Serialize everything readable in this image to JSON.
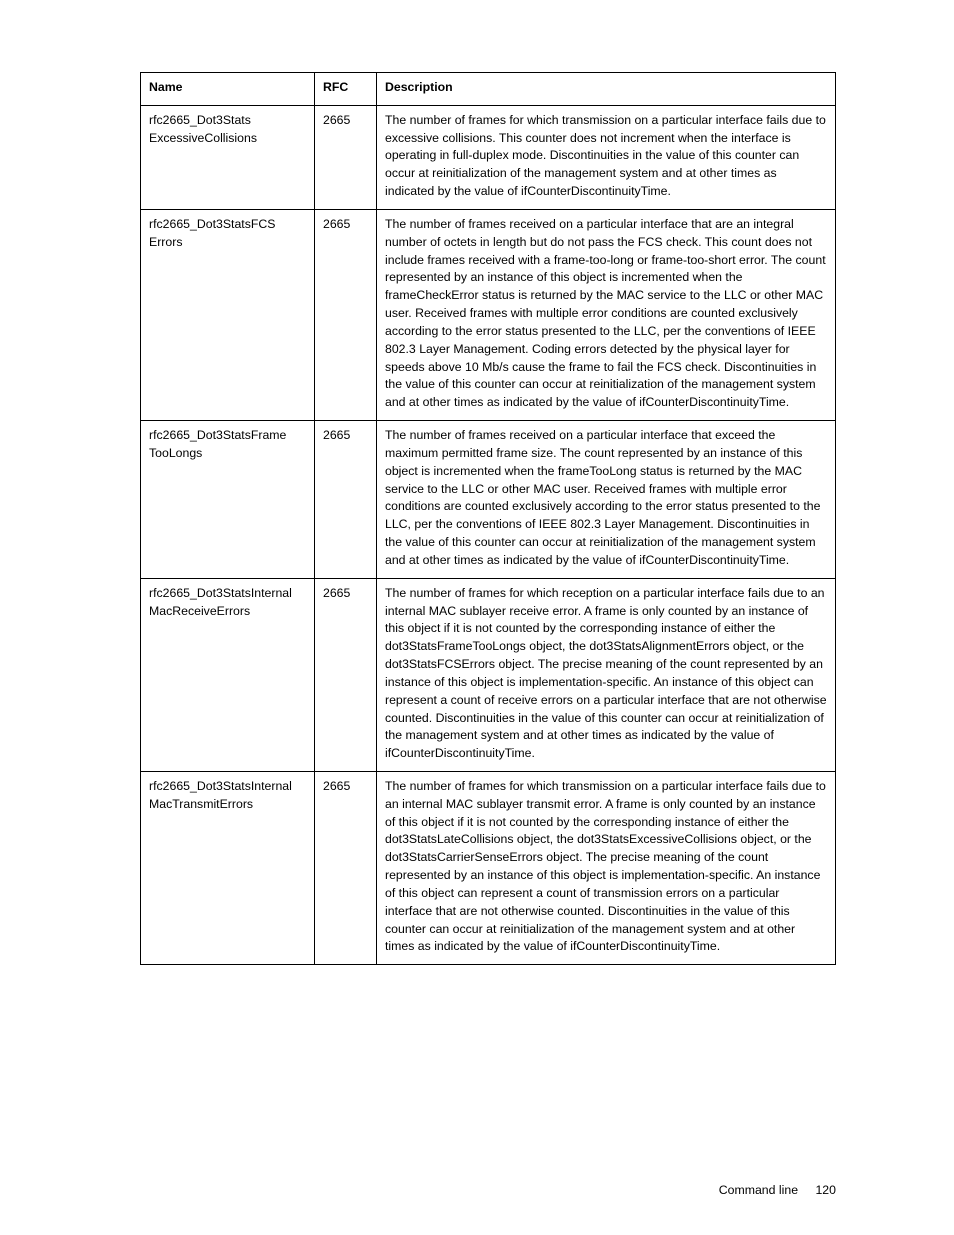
{
  "table": {
    "columns": {
      "name": "Name",
      "rfc": "RFC",
      "description": "Description"
    },
    "rows": [
      {
        "name_l1": "rfc2665_Dot3Stats",
        "name_l2": "ExcessiveCollisions",
        "rfc": "2665",
        "desc": "The number of frames for which transmission on a particular interface fails due to excessive collisions. This counter does not increment when the interface is operating in full-duplex mode. Discontinuities in the value of this counter can occur at reinitialization of the management system and at other times as indicated by the value of ifCounterDiscontinuityTime."
      },
      {
        "name_l1": "rfc2665_Dot3StatsFCS",
        "name_l2": "Errors",
        "rfc": "2665",
        "desc": "The number of frames received on a particular interface that are an integral number of octets in length but do not pass the FCS check. This count does not include frames received with a frame-too-long or frame-too-short error. The count represented by an instance of this object is incremented when the frameCheckError status is returned by the MAC service to the LLC or other MAC user. Received frames with multiple error conditions are counted exclusively according to the error status presented to the LLC, per the conventions of IEEE 802.3 Layer Management. Coding errors detected by the physical layer for speeds above 10 Mb/s cause the frame to fail the FCS check. Discontinuities in the value of this counter can occur at reinitialization of the management system and at other times as indicated by the value of ifCounterDiscontinuityTime."
      },
      {
        "name_l1": "rfc2665_Dot3StatsFrame",
        "name_l2": "TooLongs",
        "rfc": "2665",
        "desc": "The number of frames received on a particular interface that exceed the maximum permitted frame size. The count represented by an instance of this object is incremented when the frameTooLong status is returned by the MAC service to the LLC or other MAC user. Received frames with multiple error conditions are counted exclusively according to the error status presented to the LLC, per the conventions of IEEE 802.3 Layer Management. Discontinuities in the value of this counter can occur at reinitialization of the management system and at other times as indicated by the value of ifCounterDiscontinuityTime."
      },
      {
        "name_l1": "rfc2665_Dot3StatsInternal",
        "name_l2": "MacReceiveErrors",
        "rfc": "2665",
        "desc": "The number of frames for which reception on a particular interface fails due to an internal MAC sublayer receive error. A frame is only counted by an instance of this object if it is not counted by the corresponding instance of either the dot3StatsFrameTooLongs object, the dot3StatsAlignmentErrors object, or the dot3StatsFCSErrors object. The precise meaning of the count represented by an instance of this object is implementation-specific. An instance of this object can represent a count of receive errors on a particular interface that are not otherwise counted. Discontinuities in the value of this counter can occur at reinitialization of the management system and at other times as indicated by the value of ifCounterDiscontinuityTime."
      },
      {
        "name_l1": "rfc2665_Dot3StatsInternal",
        "name_l2": "MacTransmitErrors",
        "rfc": "2665",
        "desc": "The number of frames for which transmission on a particular interface fails due to an internal MAC sublayer transmit error. A frame is only counted by an instance of this object if it is not counted by the corresponding instance of either the dot3StatsLateCollisions object, the dot3StatsExcessiveCollisions object, or the dot3StatsCarrierSenseErrors object.\nThe precise meaning of the count represented by an instance of this object is implementation-specific. An instance of this object can represent a count of transmission errors on a particular interface that are not otherwise counted. Discontinuities in the value of this counter can occur at reinitialization of the management system and at other times as indicated by the value of ifCounterDiscontinuityTime."
      }
    ]
  },
  "footer": {
    "section": "Command line",
    "page": "120"
  }
}
